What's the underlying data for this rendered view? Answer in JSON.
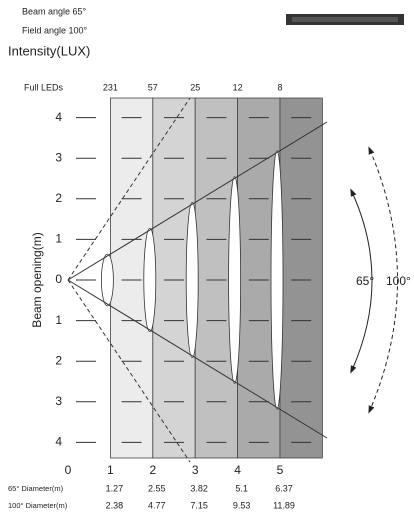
{
  "header": {
    "beam_angle": "Beam angle  65°",
    "field_angle": "Field angle  100°",
    "title": "Intensity(LUX)"
  },
  "leds": {
    "label": "Full LEDs",
    "values": [
      231,
      57,
      25,
      12,
      8
    ]
  },
  "y_axis": {
    "label": "Beam opening(m)",
    "ticks": [
      4,
      3,
      2,
      1,
      0,
      1,
      2,
      3,
      4
    ]
  },
  "x_axis": {
    "ticks": [
      0,
      1,
      2,
      3,
      4,
      5
    ]
  },
  "angles": {
    "beam": "65°",
    "field": "100°"
  },
  "diameters": [
    {
      "label": "65° Diameter(m)",
      "values": [
        1.27,
        2.55,
        3.82,
        5.1,
        6.37
      ]
    },
    {
      "label": "100° Diameter(m)",
      "values": [
        2.38,
        4.77,
        7.15,
        9.53,
        11.89
      ]
    }
  ]
}
